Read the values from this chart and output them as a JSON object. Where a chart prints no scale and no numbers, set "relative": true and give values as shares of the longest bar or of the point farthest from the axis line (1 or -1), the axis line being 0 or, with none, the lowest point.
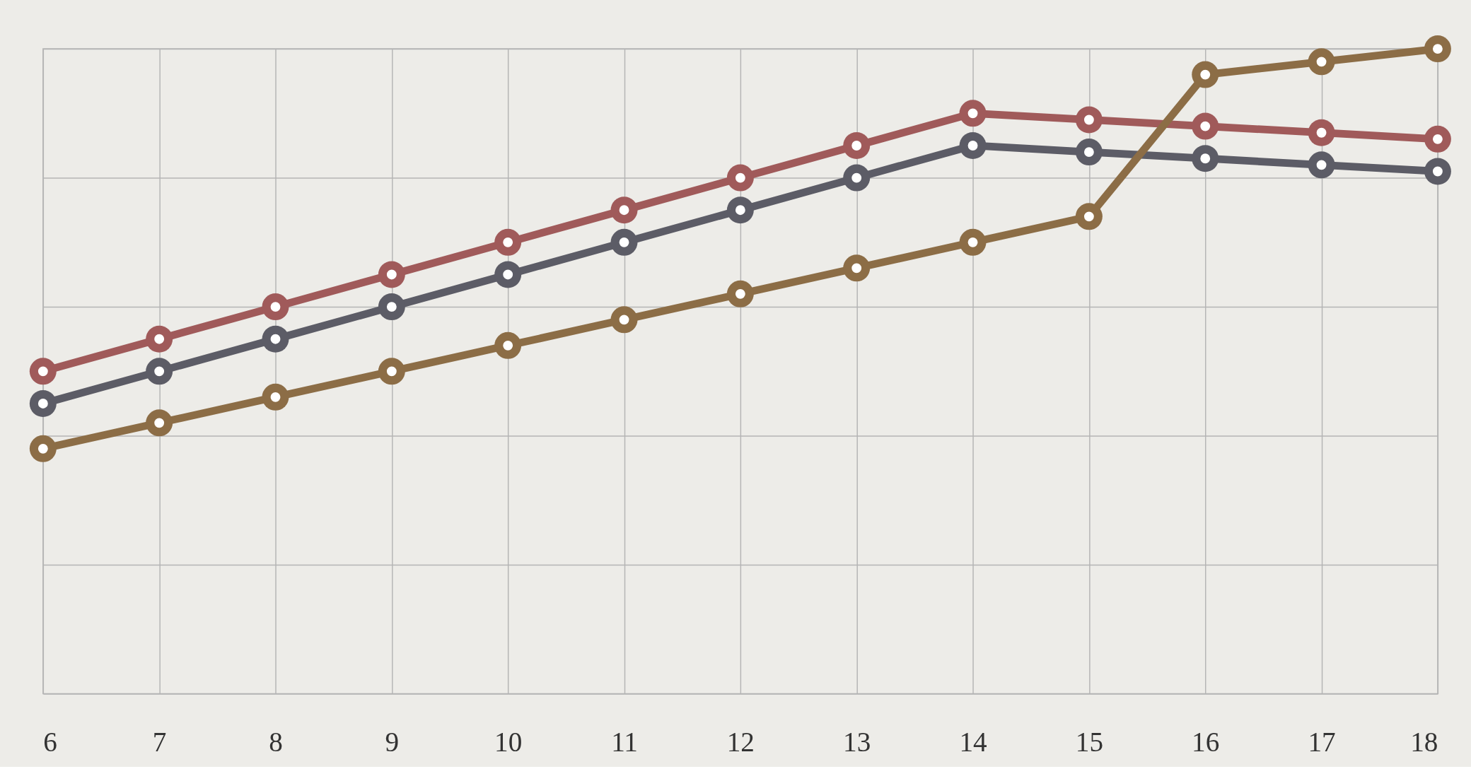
{
  "chart_data": {
    "type": "line",
    "relative": true,
    "grid": true,
    "marker": "circle",
    "line_style": "solid",
    "categories": [
      "6",
      "7",
      "8",
      "9",
      "10",
      "11",
      "12",
      "13",
      "14",
      "15",
      "16",
      "17",
      "18"
    ],
    "series": [
      {
        "color": "#a05a5a",
        "values": [
          0.5,
          0.55,
          0.6,
          0.65,
          0.7,
          0.75,
          0.8,
          0.85,
          0.9,
          0.89,
          0.88,
          0.87,
          0.86
        ]
      },
      {
        "color": "#5c5c66",
        "values": [
          0.45,
          0.5,
          0.55,
          0.6,
          0.65,
          0.7,
          0.75,
          0.8,
          0.85,
          0.84,
          0.83,
          0.82,
          0.81
        ]
      },
      {
        "color": "#8c6d46",
        "values": [
          0.38,
          0.42,
          0.46,
          0.5,
          0.54,
          0.58,
          0.62,
          0.66,
          0.7,
          0.74,
          0.96,
          0.98,
          1.0
        ]
      }
    ]
  }
}
